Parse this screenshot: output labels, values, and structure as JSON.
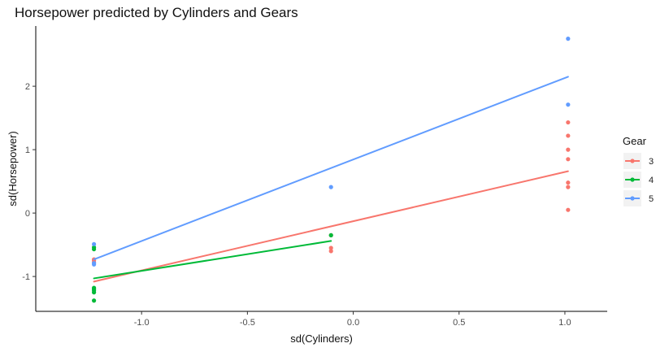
{
  "chart_data": {
    "type": "scatter",
    "title": "Horsepower predicted by Cylinders and Gears",
    "xlabel": "sd(Cylinders)",
    "ylabel": "sd(Horsepower)",
    "xlim": [
      -1.5,
      1.2
    ],
    "ylim": [
      -1.55,
      2.95
    ],
    "xticks": [
      -1.0,
      -0.5,
      0.0,
      0.5,
      1.0
    ],
    "xtick_labels": [
      "-1.0",
      "-0.5",
      "0.0",
      "0.5",
      "1.0"
    ],
    "yticks": [
      -1,
      0,
      1,
      2
    ],
    "ytick_labels": [
      "-1",
      "0",
      "1",
      "2"
    ],
    "grid": false,
    "legend": {
      "title": "Gear",
      "placement": "right"
    },
    "series": [
      {
        "name": "3",
        "color": "#F8766D",
        "points": [
          [
            -1.225,
            -0.73
          ],
          [
            -1.225,
            -0.75
          ],
          [
            -1.225,
            -0.78
          ],
          [
            -0.105,
            -0.35
          ],
          [
            -0.105,
            -0.55
          ],
          [
            -0.105,
            -0.6
          ],
          [
            1.015,
            1.43
          ],
          [
            1.015,
            1.22
          ],
          [
            1.015,
            1.0
          ],
          [
            1.015,
            0.85
          ],
          [
            1.015,
            0.48
          ],
          [
            1.015,
            0.41
          ],
          [
            1.015,
            0.05
          ]
        ],
        "fit": [
          [
            -1.225,
            -1.08
          ],
          [
            1.015,
            0.66
          ]
        ]
      },
      {
        "name": "4",
        "color": "#00BA38",
        "points": [
          [
            -1.225,
            -0.54
          ],
          [
            -1.225,
            -0.57
          ],
          [
            -1.225,
            -1.18
          ],
          [
            -1.225,
            -1.2
          ],
          [
            -1.225,
            -1.22
          ],
          [
            -1.225,
            -1.25
          ],
          [
            -1.225,
            -1.38
          ],
          [
            -0.105,
            -0.35
          ]
        ],
        "fit": [
          [
            -1.225,
            -1.03
          ],
          [
            -0.105,
            -0.44
          ]
        ]
      },
      {
        "name": "5",
        "color": "#619CFF",
        "points": [
          [
            -1.225,
            -0.49
          ],
          [
            -1.225,
            -0.79
          ],
          [
            -1.225,
            -0.81
          ],
          [
            -0.105,
            0.41
          ],
          [
            1.015,
            2.75
          ],
          [
            1.015,
            1.71
          ]
        ],
        "fit": [
          [
            -1.225,
            -0.73
          ],
          [
            1.015,
            2.15
          ]
        ]
      }
    ]
  }
}
